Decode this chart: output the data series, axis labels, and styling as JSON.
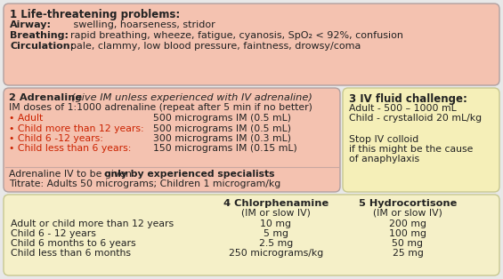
{
  "bg_color": "#e8e8e8",
  "box1": {
    "color": "#f4c2b0",
    "border": "#b0a0a0",
    "title": "1 Life-threatening problems:",
    "airway_label": "Airway:",
    "airway_text": "   swelling, hoarseness, stridor",
    "breathing_label": "Breathing:",
    "breathing_text": "  rapid breathing, wheeze, fatigue, cyanosis, SpO₂ < 92%, confusion",
    "circulation_label": "Circulation:",
    "circulation_text": "  pale, clammy, low blood pressure, faintness, drowsy/coma"
  },
  "box2": {
    "color": "#f4c2b0",
    "border": "#b0a0a0",
    "title_bold": "2 Adrenaline ",
    "title_italic": "(give IM unless experienced with IV adrenaline)",
    "subtitle": "IM doses of 1:1000 adrenaline (repeat after 5 min if no better)",
    "bullet_color": "#cc2200",
    "bullets": [
      [
        "• Adult",
        "500 micrograms IM (0.5 mL)"
      ],
      [
        "• Child more than 12 years:",
        "500 micrograms IM (0.5 mL)"
      ],
      [
        "• Child 6 -12 years:",
        "300 micrograms IM (0.3 mL)"
      ],
      [
        "• Child less than 6 years:",
        "150 micrograms IM (0.15 mL)"
      ]
    ],
    "footer1a": "Adrenaline IV to be given ",
    "footer1b": "only by experienced specialists",
    "footer2": "Titrate: Adults 50 micrograms; Children 1 microgram/kg"
  },
  "box3": {
    "color": "#f5efb8",
    "border": "#c8c890",
    "title": "3 IV fluid challenge:",
    "lines": [
      "Adult - 500 – 1000 mL",
      "Child - crystalloid 20 mL/kg",
      "",
      "Stop IV colloid",
      "if this might be the cause",
      "of anaphylaxis"
    ]
  },
  "box45": {
    "color": "#f5f0c8",
    "border": "#c8c890",
    "col4_title": "4 Chlorphenamine",
    "col4_sub": "(IM or slow IV)",
    "col5_title": "5 Hydrocortisone",
    "col5_sub": "(IM or slow IV)",
    "row_labels": [
      "Adult or child more than 12 years",
      "Child 6 - 12 years",
      "Child 6 months to 6 years",
      "Child less than 6 months"
    ],
    "col4_vals": [
      "10 mg",
      "5 mg",
      "2.5 mg",
      "250 micrograms/kg"
    ],
    "col5_vals": [
      "200 mg",
      "100 mg",
      "50 mg",
      "25 mg"
    ]
  }
}
